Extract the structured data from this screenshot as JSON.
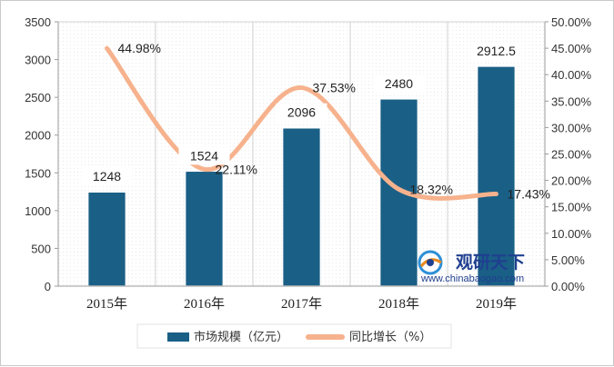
{
  "chart_data": {
    "type": "bar+line",
    "categories": [
      "2015年",
      "2016年",
      "2017年",
      "2018年",
      "2019年"
    ],
    "series": [
      {
        "name": "市场规模（亿元）",
        "type": "bar",
        "axis": "left",
        "values": [
          1248,
          1524,
          2096,
          2480,
          2912.5
        ],
        "labels": [
          "1248",
          "1524",
          "2096",
          "2480",
          "2912.5"
        ],
        "color": "#1a5f86"
      },
      {
        "name": "同比增长（%）",
        "type": "line",
        "axis": "right",
        "values": [
          44.98,
          22.11,
          37.53,
          18.32,
          17.43
        ],
        "labels": [
          "44.98%",
          "22.11%",
          "37.53%",
          "18.32%",
          "17.43%"
        ],
        "color": "#f6b28d"
      }
    ],
    "y_left": {
      "min": 0,
      "max": 3500,
      "ticks": [
        "0",
        "500",
        "1000",
        "1500",
        "2000",
        "2500",
        "3000",
        "3500"
      ]
    },
    "y_right": {
      "min": 0,
      "max": 50,
      "ticks": [
        "0.00%",
        "5.00%",
        "10.00%",
        "15.00%",
        "20.00%",
        "25.00%",
        "30.00%",
        "35.00%",
        "40.00%",
        "45.00%",
        "50.00%"
      ]
    },
    "grid": "vertical",
    "legend_position": "bottom"
  },
  "watermark": {
    "name": "观研天下",
    "url": "www.chinabaogao.com"
  }
}
